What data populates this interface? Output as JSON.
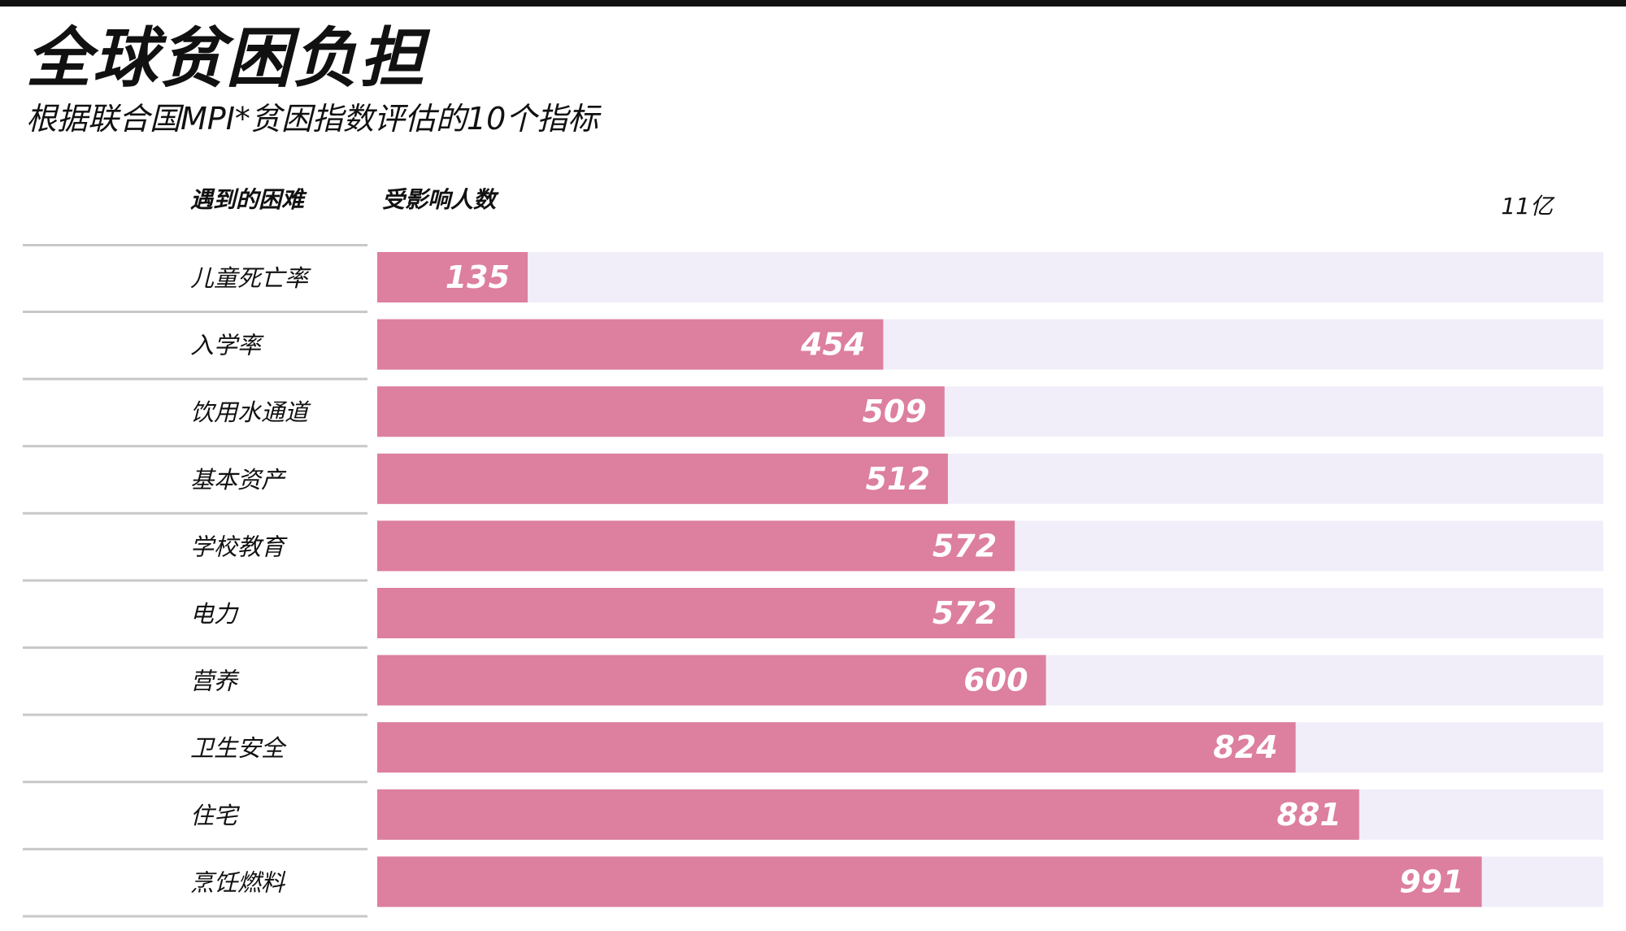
{
  "header": {
    "title": "全球贫困负担",
    "subtitle": "根据联合国MPI*贫困指数评估的10个指标"
  },
  "columns": {
    "problem_label": "遇到的困难",
    "people_label": "受影响人数"
  },
  "axis": {
    "max_label": "11亿"
  },
  "colors": {
    "bar": "#dd7f9e",
    "track": "#f1eef9",
    "rule": "#c8c8c8",
    "value_text": "#ffffff"
  },
  "chart_data": {
    "type": "bar",
    "orientation": "horizontal",
    "categories": [
      "儿童死亡率",
      "入学率",
      "饮用水通道",
      "基本资产",
      "学校教育",
      "电力",
      "营养",
      "卫生安全",
      "住宅",
      "烹饪燃料"
    ],
    "values": [
      135,
      454,
      509,
      512,
      572,
      572,
      600,
      824,
      881,
      991
    ],
    "xlim": [
      0,
      1100
    ],
    "grid": false
  }
}
